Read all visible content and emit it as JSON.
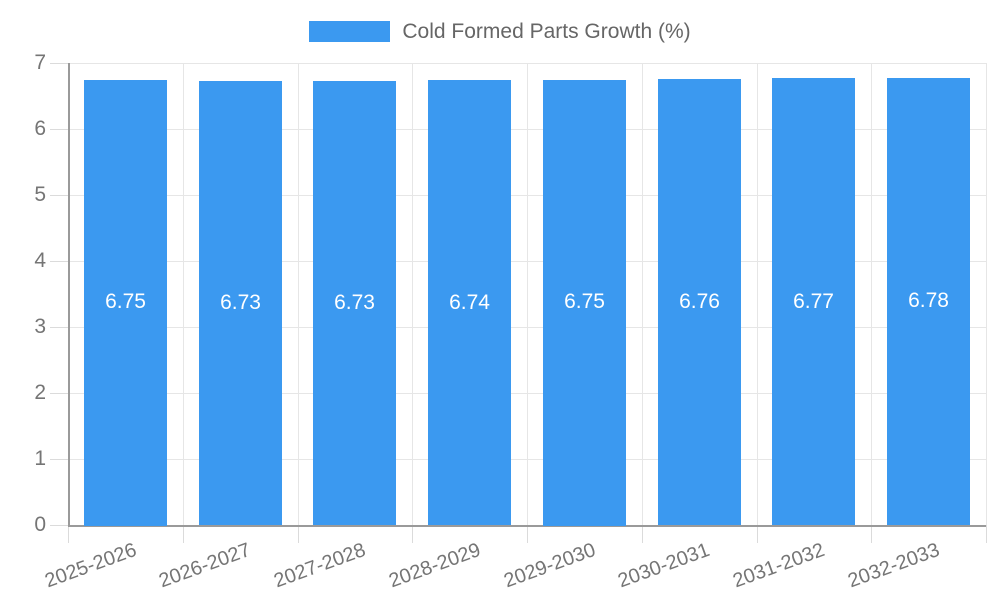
{
  "chart_data": {
    "type": "bar",
    "title": "",
    "series_label": "Cold Formed Parts Growth (%)",
    "categories": [
      "2025-2026",
      "2026-2027",
      "2027-2028",
      "2028-2029",
      "2029-2030",
      "2030-2031",
      "2031-2032",
      "2032-2033"
    ],
    "values": [
      6.75,
      6.73,
      6.73,
      6.74,
      6.75,
      6.76,
      6.77,
      6.78
    ],
    "value_labels": [
      "6.75",
      "6.73",
      "6.73",
      "6.74",
      "6.75",
      "6.76",
      "6.77",
      "6.78"
    ],
    "xlabel": "",
    "ylabel": "",
    "ylim": [
      0,
      7
    ],
    "ytick_step": 1,
    "ytick_labels": [
      "0",
      "1",
      "2",
      "3",
      "4",
      "5",
      "6",
      "7"
    ],
    "grid": true,
    "legend_position": "top",
    "x_label_rotation_deg": -20,
    "colors": {
      "bar": "#3B99F0",
      "grid": "#E6E6E6",
      "tick": "#DBDBDB",
      "axis": "#9A9A9A",
      "axis_label": "#757575",
      "legend_text": "#666666",
      "value_label": "#FFFFFF",
      "background": "#FFFFFF"
    }
  }
}
